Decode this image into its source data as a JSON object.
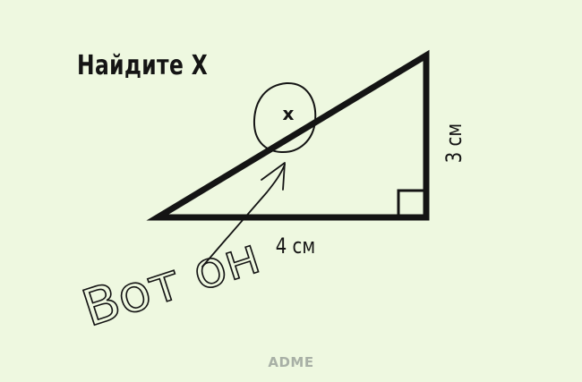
{
  "title": "Найдите X",
  "labels": {
    "hypotenuse_variable": "x",
    "base": "4 см",
    "height": "3 см",
    "handwritten_note": "Вот он"
  },
  "watermark": "ADME",
  "colors": {
    "background": "#eef8e0",
    "ink": "#141414",
    "watermark": "#a8b0a6"
  }
}
